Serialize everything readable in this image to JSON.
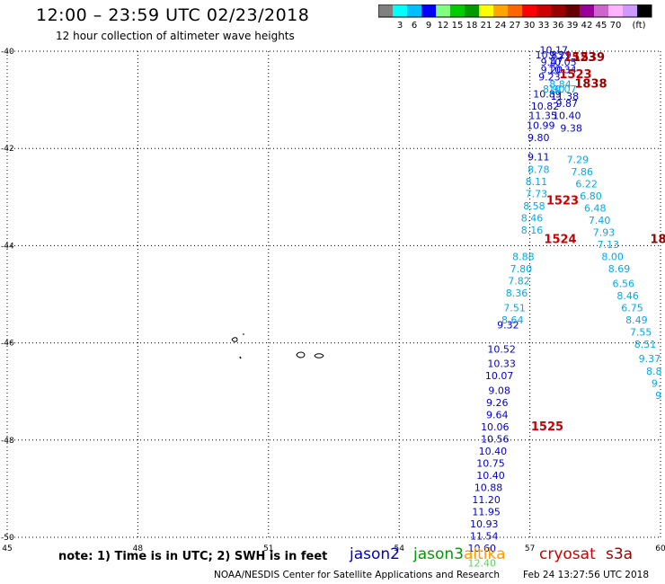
{
  "header": {
    "title": "12:00 – 23:59 UTC 02/23/2018",
    "subtitle": "12 hour collection of altimeter wave heights"
  },
  "colorbar": {
    "colors": [
      "#808080",
      "#00ffff",
      "#00bfff",
      "#0000ff",
      "#80ff80",
      "#00cc00",
      "#009900",
      "#ffff00",
      "#ffa500",
      "#ff6600",
      "#ff0000",
      "#cc0000",
      "#990000",
      "#660000",
      "#990099",
      "#cc66cc",
      "#ffb3ff",
      "#cc99ff",
      "#000000"
    ],
    "labels": [
      "3",
      "6",
      "9",
      "12",
      "15",
      "18",
      "21",
      "24",
      "27",
      "30",
      "33",
      "36",
      "39",
      "42",
      "45",
      "70"
    ],
    "unit": "(ft)"
  },
  "footer": {
    "note": "note:  1) Time is in UTC;  2) SWH is in feet",
    "legend": [
      {
        "name": "jason2",
        "color": "#0000cc"
      },
      {
        "name": "jason3",
        "color": "#009900"
      },
      {
        "name": "altika",
        "color": "#ff9900"
      },
      {
        "name": "cryosat",
        "color": "#cc0000"
      },
      {
        "name": "s3a",
        "color": "#990000"
      }
    ],
    "credit": "NOAA/NESDIS Center for Satellite Applications and Research",
    "timestamp": "Feb 24 13:27:56 UTC 2018"
  },
  "chart_data": {
    "type": "scatter",
    "xlim": [
      45,
      60
    ],
    "ylim": [
      -50,
      -40
    ],
    "xticks": [
      "45",
      "48",
      "51",
      "54",
      "57",
      "60"
    ],
    "yticks": [
      "-40",
      "-42",
      "-44",
      "-46",
      "-48",
      "-50"
    ],
    "grid": true,
    "series": [
      {
        "name": "jason2",
        "color": "#0000cc",
        "points": [
          {
            "x": 57.55,
            "y": -40.05,
            "v": "10.17"
          },
          {
            "x": 57.45,
            "y": -40.15,
            "v": "10.83"
          },
          {
            "x": 57.7,
            "y": -40.15,
            "v": "9.29"
          },
          {
            "x": 57.5,
            "y": -40.3,
            "v": "9.47"
          },
          {
            "x": 57.75,
            "y": -40.3,
            "v": "10.05"
          },
          {
            "x": 57.5,
            "y": -40.45,
            "v": "9.20"
          },
          {
            "x": 57.75,
            "y": -40.45,
            "v": "10.34"
          },
          {
            "x": 57.45,
            "y": -40.6,
            "v": "9.23"
          },
          {
            "x": 57.4,
            "y": -40.95,
            "v": "10.89"
          },
          {
            "x": 57.35,
            "y": -41.2,
            "v": "10.82"
          },
          {
            "x": 57.3,
            "y": -41.4,
            "v": "11.35"
          },
          {
            "x": 57.25,
            "y": -41.6,
            "v": "10.99"
          },
          {
            "x": 57.2,
            "y": -41.85,
            "v": "9.80"
          },
          {
            "x": 57.2,
            "y": -42.25,
            "v": "9.11"
          },
          {
            "x": 57.8,
            "y": -41.0,
            "v": "11.38"
          },
          {
            "x": 57.85,
            "y": -41.4,
            "v": "10.40"
          },
          {
            "x": 57.85,
            "y": -41.15,
            "v": "9.87"
          },
          {
            "x": 57.95,
            "y": -41.65,
            "v": "9.38"
          },
          {
            "x": 56.35,
            "y": -46.2,
            "v": "10.52"
          },
          {
            "x": 56.35,
            "y": -46.5,
            "v": "10.33"
          },
          {
            "x": 56.3,
            "y": -46.75,
            "v": "10.07"
          },
          {
            "x": 56.3,
            "y": -47.05,
            "v": "9.08"
          },
          {
            "x": 56.25,
            "y": -47.3,
            "v": "9.26"
          },
          {
            "x": 56.25,
            "y": -47.55,
            "v": "9.64"
          },
          {
            "x": 56.2,
            "y": -47.8,
            "v": "10.06"
          },
          {
            "x": 56.2,
            "y": -48.05,
            "v": "10.56"
          },
          {
            "x": 56.15,
            "y": -48.3,
            "v": "10.40"
          },
          {
            "x": 56.1,
            "y": -48.55,
            "v": "10.75"
          },
          {
            "x": 56.1,
            "y": -48.8,
            "v": "10.40"
          },
          {
            "x": 56.05,
            "y": -49.05,
            "v": "10.88"
          },
          {
            "x": 56.0,
            "y": -49.3,
            "v": "11.20"
          },
          {
            "x": 56.0,
            "y": -49.55,
            "v": "11.95"
          },
          {
            "x": 55.95,
            "y": -49.8,
            "v": "10.93"
          },
          {
            "x": 55.95,
            "y": -50.05,
            "v": "11.54"
          },
          {
            "x": 55.9,
            "y": -50.3,
            "v": "10.60"
          },
          {
            "x": 56.5,
            "y": -45.7,
            "v": "9.32"
          }
        ]
      },
      {
        "name": "jason2-light",
        "color": "#00aaee",
        "points": [
          {
            "x": 57.7,
            "y": -40.75,
            "v": "8.84"
          },
          {
            "x": 57.55,
            "y": -40.85,
            "v": "8.90"
          },
          {
            "x": 57.75,
            "y": -40.85,
            "v": "10.07"
          },
          {
            "x": 57.2,
            "y": -42.5,
            "v": "8.78"
          },
          {
            "x": 57.15,
            "y": -42.75,
            "v": "8.11"
          },
          {
            "x": 57.15,
            "y": -43.0,
            "v": "7.73"
          },
          {
            "x": 57.1,
            "y": -43.25,
            "v": "8.58"
          },
          {
            "x": 57.05,
            "y": -43.5,
            "v": "8.46"
          },
          {
            "x": 57.05,
            "y": -43.75,
            "v": "8.16"
          },
          {
            "x": 56.85,
            "y": -44.3,
            "v": "8.88"
          },
          {
            "x": 56.8,
            "y": -44.55,
            "v": "7.80"
          },
          {
            "x": 56.75,
            "y": -44.8,
            "v": "7.82"
          },
          {
            "x": 56.7,
            "y": -45.05,
            "v": "8.36"
          },
          {
            "x": 56.65,
            "y": -45.35,
            "v": "7.51"
          },
          {
            "x": 56.6,
            "y": -45.6,
            "v": "8.64"
          },
          {
            "x": 58.1,
            "y": -42.3,
            "v": "7.29"
          },
          {
            "x": 58.2,
            "y": -42.55,
            "v": "7.86"
          },
          {
            "x": 58.3,
            "y": -42.8,
            "v": "6.22"
          },
          {
            "x": 58.4,
            "y": -43.05,
            "v": "6.80"
          },
          {
            "x": 58.5,
            "y": -43.3,
            "v": "6.48"
          },
          {
            "x": 58.6,
            "y": -43.55,
            "v": "7.40"
          },
          {
            "x": 58.7,
            "y": -43.8,
            "v": "7.93"
          },
          {
            "x": 58.8,
            "y": -44.05,
            "v": "7.13"
          },
          {
            "x": 58.9,
            "y": -44.3,
            "v": "8.00"
          },
          {
            "x": 59.05,
            "y": -44.55,
            "v": "8.69"
          },
          {
            "x": 59.15,
            "y": -44.85,
            "v": "6.56"
          },
          {
            "x": 59.25,
            "y": -45.1,
            "v": "8.46"
          },
          {
            "x": 59.35,
            "y": -45.35,
            "v": "6.75"
          },
          {
            "x": 59.45,
            "y": -45.6,
            "v": "8.49"
          },
          {
            "x": 59.55,
            "y": -45.85,
            "v": "7.55"
          },
          {
            "x": 59.65,
            "y": -46.1,
            "v": "8.51"
          },
          {
            "x": 59.75,
            "y": -46.4,
            "v": "9.37"
          },
          {
            "x": 59.85,
            "y": -46.65,
            "v": "8.8"
          },
          {
            "x": 59.9,
            "y": -46.9,
            "v": "9."
          },
          {
            "x": 59.95,
            "y": -47.15,
            "v": "9"
          }
        ]
      },
      {
        "name": "jason3",
        "color": "#66cc66",
        "points": [
          {
            "x": 55.9,
            "y": -50.6,
            "v": "12.40"
          }
        ]
      },
      {
        "name": "times-red",
        "color": "#cc0000",
        "points": [
          {
            "x": 58.15,
            "y": -40.2,
            "v": "1523"
          },
          {
            "x": 58.05,
            "y": -40.55,
            "v": "1523"
          },
          {
            "x": 57.75,
            "y": -43.15,
            "v": "1523"
          },
          {
            "x": 57.7,
            "y": -43.95,
            "v": "1524"
          },
          {
            "x": 57.4,
            "y": -47.8,
            "v": "1525"
          }
        ]
      },
      {
        "name": "times-darkred",
        "color": "#990000",
        "points": [
          {
            "x": 58.35,
            "y": -40.2,
            "v": "1539"
          },
          {
            "x": 58.4,
            "y": -40.75,
            "v": "1838"
          },
          {
            "x": 59.95,
            "y": -43.95,
            "v": "18"
          }
        ]
      }
    ]
  }
}
